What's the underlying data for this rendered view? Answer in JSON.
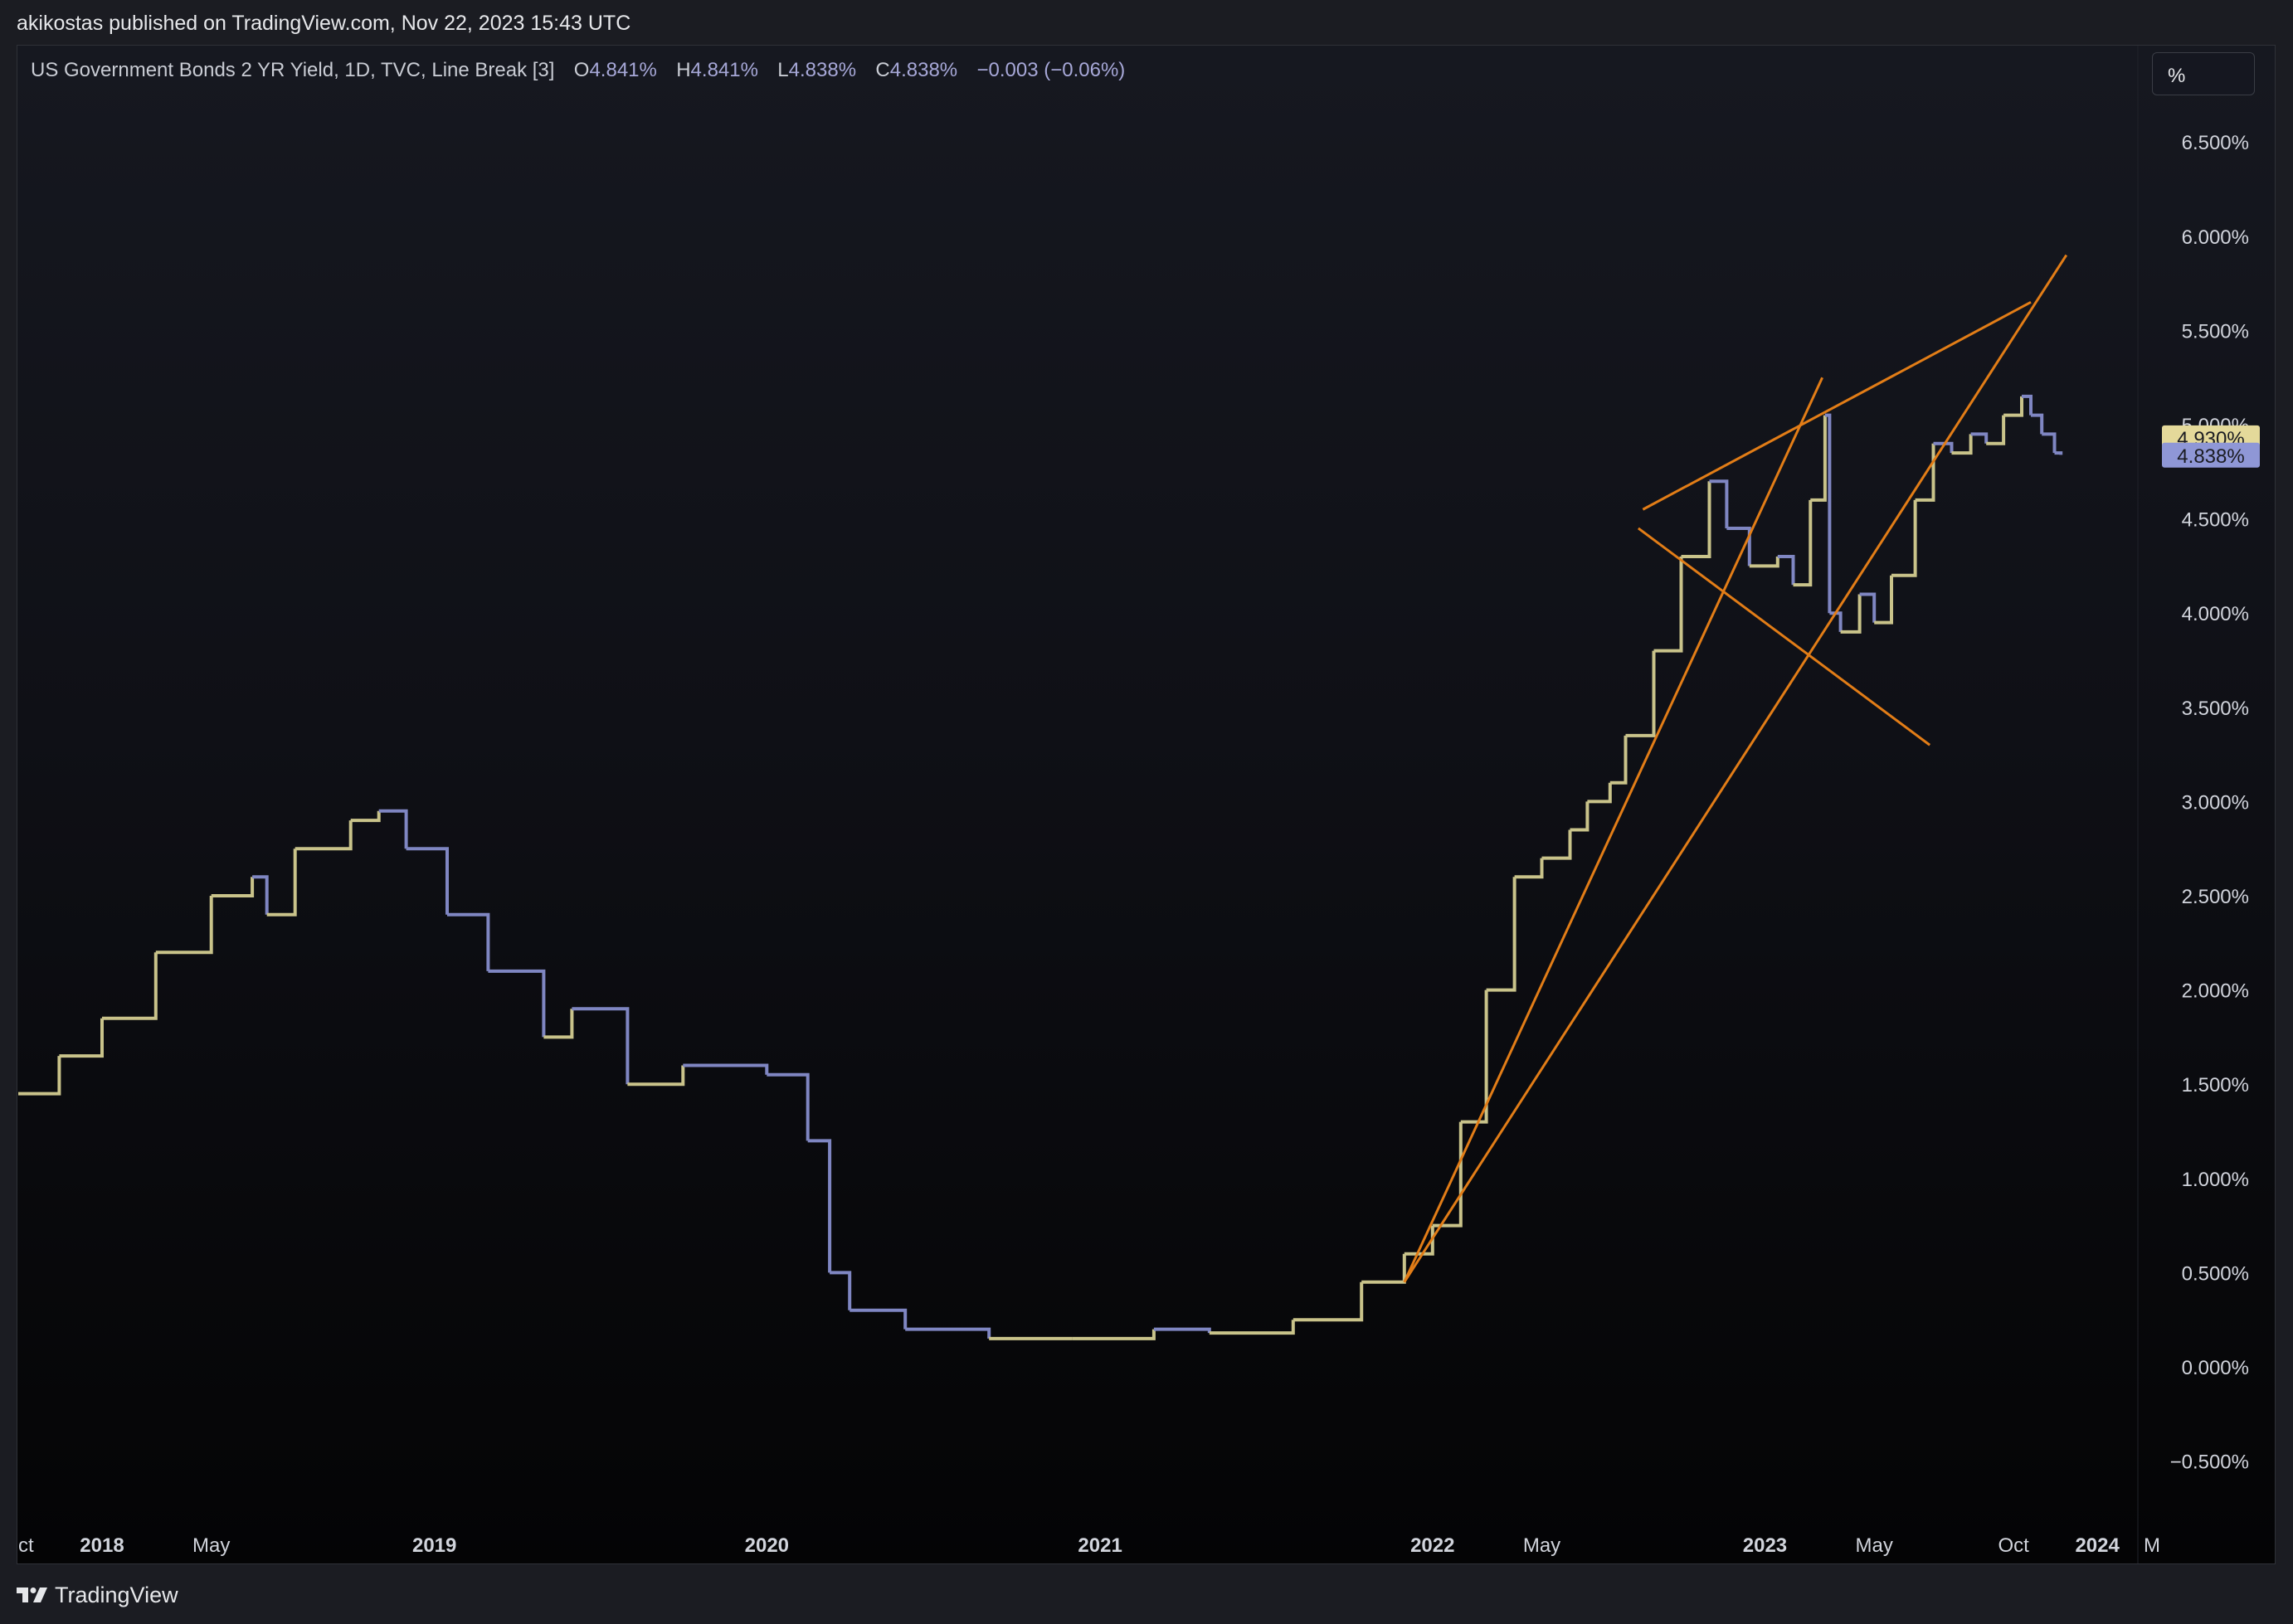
{
  "publish_line": "akikostas published on TradingView.com, Nov 22, 2023 15:43 UTC",
  "legend": {
    "title": "US Government Bonds 2 YR Yield, 1D, TVC, Line Break [3]",
    "o_label": "O",
    "o_val": "4.841%",
    "h_label": "H",
    "h_val": "4.841%",
    "l_label": "L",
    "l_val": "4.838%",
    "c_label": "C",
    "c_val": "4.838%",
    "change": "−0.003 (−0.06%)"
  },
  "scale_button": "%",
  "footer_brand": "TradingView",
  "colors": {
    "up": "#c9c38a",
    "down": "#7f86c2",
    "trendline": "#e27d17",
    "grid_text": "#d1d4dc",
    "badge_up": "#e4d99a",
    "badge_down": "#8f97d6"
  },
  "chart_data": {
    "type": "line",
    "title": "US Government Bonds 2 YR Yield, 1D, TVC, Line Break [3]",
    "xlabel": "",
    "ylabel": "",
    "ylim": [
      -0.8,
      6.8
    ],
    "y_ticks": [
      "6.500%",
      "6.000%",
      "5.500%",
      "5.000%",
      "4.500%",
      "4.000%",
      "3.500%",
      "3.000%",
      "2.500%",
      "2.000%",
      "1.500%",
      "1.000%",
      "0.500%",
      "0.000%",
      "−0.500%"
    ],
    "y_tick_values": [
      6.5,
      6.0,
      5.5,
      5.0,
      4.5,
      4.0,
      3.5,
      3.0,
      2.5,
      2.0,
      1.5,
      1.0,
      0.5,
      0.0,
      -0.5
    ],
    "x_ticks": [
      {
        "label": "Oct",
        "bold": false,
        "date": "2017-10-01"
      },
      {
        "label": "2018",
        "bold": true,
        "date": "2018-01-01"
      },
      {
        "label": "May",
        "bold": false,
        "date": "2018-05-01"
      },
      {
        "label": "2019",
        "bold": true,
        "date": "2019-01-01"
      },
      {
        "label": "2020",
        "bold": true,
        "date": "2020-01-01"
      },
      {
        "label": "2021",
        "bold": true,
        "date": "2021-01-01"
      },
      {
        "label": "2022",
        "bold": true,
        "date": "2022-01-01"
      },
      {
        "label": "May",
        "bold": false,
        "date": "2022-05-01"
      },
      {
        "label": "2023",
        "bold": true,
        "date": "2023-01-01"
      },
      {
        "label": "May",
        "bold": false,
        "date": "2023-05-01"
      },
      {
        "label": "Oct",
        "bold": false,
        "date": "2023-10-01"
      },
      {
        "label": "2024",
        "bold": true,
        "date": "2024-01-01"
      },
      {
        "label": "M",
        "bold": false,
        "date": "2024-03-01"
      }
    ],
    "series": [
      {
        "name": "",
        "points": [
          [
            "2017-10-01",
            1.45
          ],
          [
            "2017-11-15",
            1.65
          ],
          [
            "2018-01-01",
            1.85
          ],
          [
            "2018-03-01",
            2.2
          ],
          [
            "2018-05-01",
            2.5
          ],
          [
            "2018-06-15",
            2.6
          ],
          [
            "2018-07-01",
            2.4
          ],
          [
            "2018-08-01",
            2.75
          ],
          [
            "2018-10-01",
            2.9
          ],
          [
            "2018-11-01",
            2.95
          ],
          [
            "2018-12-01",
            2.75
          ],
          [
            "2019-01-15",
            2.4
          ],
          [
            "2019-03-01",
            2.1
          ],
          [
            "2019-05-01",
            1.75
          ],
          [
            "2019-06-01",
            1.9
          ],
          [
            "2019-08-01",
            1.5
          ],
          [
            "2019-10-01",
            1.6
          ],
          [
            "2020-01-01",
            1.55
          ],
          [
            "2020-02-15",
            1.2
          ],
          [
            "2020-03-10",
            0.5
          ],
          [
            "2020-04-01",
            0.3
          ],
          [
            "2020-06-01",
            0.2
          ],
          [
            "2020-09-01",
            0.15
          ],
          [
            "2020-12-01",
            0.15
          ],
          [
            "2021-03-01",
            0.2
          ],
          [
            "2021-05-01",
            0.18
          ],
          [
            "2021-08-01",
            0.25
          ],
          [
            "2021-10-15",
            0.45
          ],
          [
            "2021-12-01",
            0.6
          ],
          [
            "2022-01-01",
            0.75
          ],
          [
            "2022-02-01",
            1.3
          ],
          [
            "2022-03-01",
            2.0
          ],
          [
            "2022-04-01",
            2.6
          ],
          [
            "2022-05-01",
            2.7
          ],
          [
            "2022-06-01",
            2.85
          ],
          [
            "2022-06-20",
            3.0
          ],
          [
            "2022-07-15",
            3.1
          ],
          [
            "2022-08-01",
            3.35
          ],
          [
            "2022-09-01",
            3.8
          ],
          [
            "2022-10-01",
            4.3
          ],
          [
            "2022-11-01",
            4.7
          ],
          [
            "2022-11-20",
            4.45
          ],
          [
            "2022-12-15",
            4.25
          ],
          [
            "2023-01-15",
            4.3
          ],
          [
            "2023-02-01",
            4.15
          ],
          [
            "2023-02-20",
            4.6
          ],
          [
            "2023-03-08",
            5.05
          ],
          [
            "2023-03-13",
            4.0
          ],
          [
            "2023-03-25",
            3.9
          ],
          [
            "2023-04-15",
            4.1
          ],
          [
            "2023-05-01",
            3.95
          ],
          [
            "2023-05-20",
            4.2
          ],
          [
            "2023-06-15",
            4.6
          ],
          [
            "2023-07-05",
            4.9
          ],
          [
            "2023-07-25",
            4.85
          ],
          [
            "2023-08-15",
            4.95
          ],
          [
            "2023-09-01",
            4.9
          ],
          [
            "2023-09-20",
            5.05
          ],
          [
            "2023-10-10",
            5.15
          ],
          [
            "2023-10-20",
            5.05
          ],
          [
            "2023-11-01",
            4.95
          ],
          [
            "2023-11-15",
            4.85
          ],
          [
            "2023-11-22",
            4.84
          ]
        ]
      }
    ],
    "trendlines": [
      {
        "from": [
          "2021-12-01",
          0.45
        ],
        "to": [
          "2023-03-05",
          5.25
        ]
      },
      {
        "from": [
          "2021-12-01",
          0.45
        ],
        "to": [
          "2023-11-28",
          5.9
        ]
      },
      {
        "from": [
          "2022-08-20",
          4.55
        ],
        "to": [
          "2023-10-20",
          5.65
        ]
      },
      {
        "from": [
          "2022-08-15",
          4.45
        ],
        "to": [
          "2023-07-01",
          3.3
        ]
      }
    ],
    "last_values": [
      {
        "label": "4.930%",
        "value": 4.93,
        "kind": "up"
      },
      {
        "label": "4.838%",
        "value": 4.838,
        "kind": "down"
      }
    ],
    "grid": false
  }
}
